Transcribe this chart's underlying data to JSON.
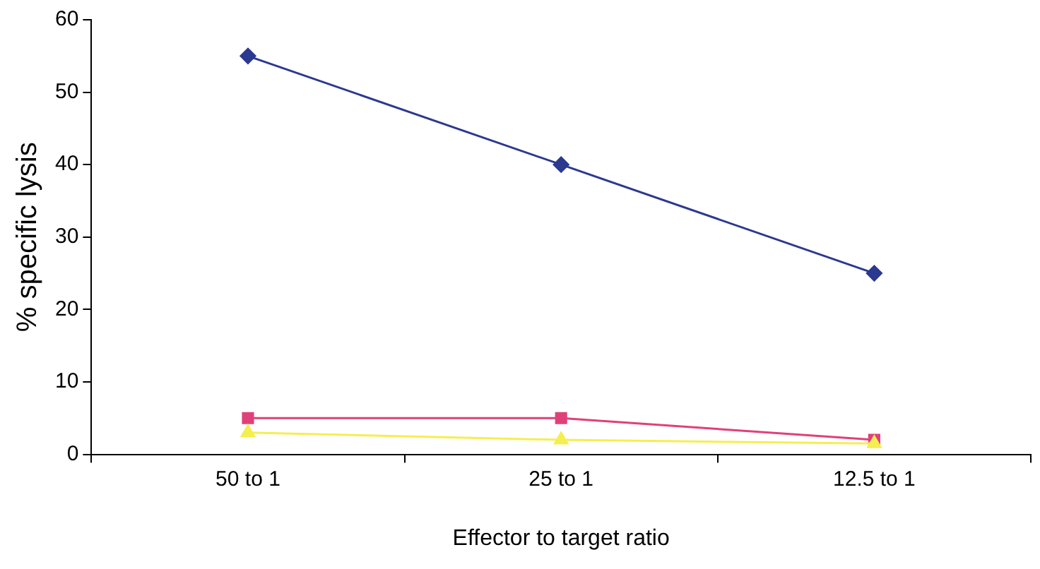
{
  "chart_data": {
    "type": "line",
    "xlabel": "Effector to target ratio",
    "ylabel": "% specific lysis",
    "categories": [
      "50 to 1",
      "25 to 1",
      "12.5 to 1"
    ],
    "series": [
      {
        "color": "#2b3990",
        "values": [
          55,
          40,
          25
        ],
        "marker": "diamond"
      },
      {
        "color": "#e0407a",
        "values": [
          5,
          5,
          2
        ],
        "marker": "square"
      },
      {
        "color": "#f5ee50",
        "values": [
          3,
          2,
          1.5
        ],
        "marker": "triangle"
      }
    ],
    "ylim": [
      0,
      60
    ],
    "yticks": [
      0,
      10,
      20,
      30,
      40,
      50,
      60
    ],
    "grid": false,
    "legend": false
  }
}
